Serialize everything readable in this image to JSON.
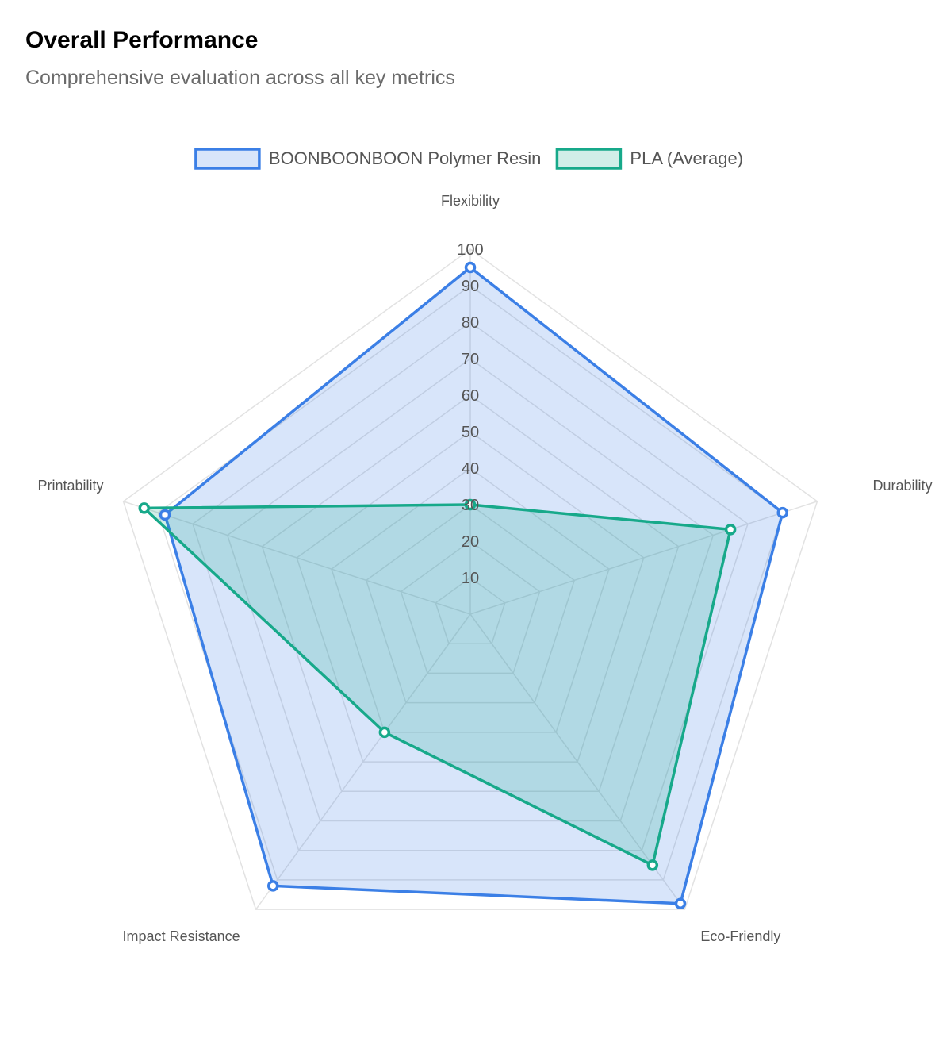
{
  "header": {
    "title": "Overall Performance",
    "subtitle": "Comprehensive evaluation across all key metrics"
  },
  "chart_data": {
    "type": "radar",
    "categories": [
      "Flexibility",
      "Durability",
      "Eco-Friendly",
      "Impact Resistance",
      "Printability"
    ],
    "series": [
      {
        "name": "BOONBOONBOON Polymer Resin",
        "values": [
          95,
          90,
          98,
          92,
          88
        ],
        "color": "#3b7fe6"
      },
      {
        "name": "PLA (Average)",
        "values": [
          30,
          75,
          85,
          40,
          94
        ],
        "color": "#17a98a"
      }
    ],
    "rlim": [
      0,
      100
    ],
    "ticks": [
      10,
      20,
      30,
      40,
      50,
      60,
      70,
      80,
      90,
      100
    ],
    "legend": "top-center",
    "grid": true
  }
}
